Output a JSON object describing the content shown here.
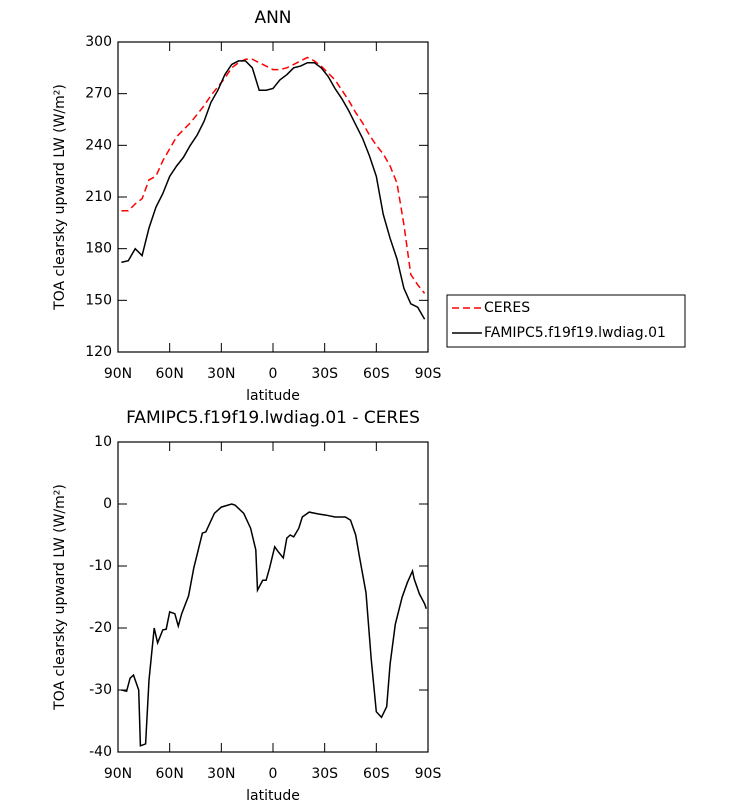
{
  "chart_data": [
    {
      "type": "line",
      "title": "ANN",
      "xlabel": "latitude",
      "ylabel": "TOA clearsky upward LW (W/m²)",
      "x": [
        88,
        84,
        80,
        76,
        72,
        68,
        64,
        60,
        56,
        52,
        48,
        44,
        40,
        36,
        32,
        28,
        24,
        20,
        16,
        12,
        8,
        4,
        0,
        -4,
        -8,
        -12,
        -16,
        -20,
        -24,
        -28,
        -32,
        -36,
        -40,
        -44,
        -48,
        -52,
        -56,
        -60,
        -64,
        -68,
        -72,
        -76,
        -80,
        -84,
        -88
      ],
      "series": [
        {
          "name": "CERES",
          "color": "#ff0000",
          "linestyle": "dashed",
          "values": [
            202,
            202,
            206,
            209,
            220,
            222,
            231,
            238,
            245,
            249,
            253,
            258,
            263,
            269,
            274,
            279,
            285,
            288,
            290,
            290,
            288,
            286,
            284,
            284,
            285,
            287,
            289,
            291,
            289,
            286,
            282,
            278,
            272,
            266,
            259,
            253,
            246,
            240,
            235,
            228,
            218,
            194,
            165,
            159,
            154
          ]
        },
        {
          "name": "FAMIPC5.f19f19.lwdiag.01",
          "color": "#000000",
          "linestyle": "solid",
          "values": [
            172,
            173,
            180,
            176,
            192,
            204,
            212,
            222,
            228,
            233,
            240,
            246,
            254,
            265,
            272,
            281,
            287,
            289,
            289,
            285,
            272,
            272,
            273,
            278,
            281,
            285,
            286,
            288,
            288,
            285,
            280,
            273,
            267,
            260,
            252,
            244,
            234,
            222,
            200,
            186,
            174,
            157,
            148,
            146,
            139
          ]
        }
      ],
      "xlim": [
        90,
        -90
      ],
      "xticks": [
        {
          "value": 90,
          "label": "90N"
        },
        {
          "value": 60,
          "label": "60N"
        },
        {
          "value": 30,
          "label": "30N"
        },
        0,
        {
          "value": -30,
          "label": "30S"
        },
        {
          "value": -60,
          "label": "60S"
        },
        {
          "value": -90,
          "label": "90S"
        }
      ],
      "ylim": [
        120,
        300
      ],
      "yticks": [
        120,
        150,
        180,
        210,
        240,
        270,
        300
      ],
      "legend": "outside-right"
    },
    {
      "type": "line",
      "title": "FAMIPC5.f19f19.lwdiag.01 - CERES",
      "xlabel": "latitude",
      "ylabel": "TOA clearsky upward LW (W/m²)",
      "x": [
        88,
        85,
        83,
        81,
        78,
        77,
        74,
        72,
        69,
        67,
        64,
        62,
        60,
        57,
        55,
        53,
        49,
        46,
        41,
        39,
        34,
        30,
        24,
        22,
        17,
        13,
        10,
        9,
        6,
        4,
        2,
        -1,
        -3,
        -6,
        -8,
        -10,
        -12,
        -15,
        -17,
        -21,
        -26,
        -31,
        -36,
        -42,
        -45,
        -48,
        -50,
        -54,
        -57,
        -60,
        -63,
        -66,
        -68,
        -71,
        -75,
        -78,
        -81,
        -82,
        -85,
        -88,
        -89
      ],
      "color": "#000000",
      "values": [
        -30,
        -30.2,
        -28.1,
        -27.6,
        -30,
        -39,
        -38.7,
        -28.4,
        -20,
        -22.4,
        -20.3,
        -20.2,
        -17.4,
        -17.7,
        -19.7,
        -17.7,
        -14.8,
        -10.3,
        -4.7,
        -4.5,
        -1.5,
        -0.5,
        0,
        -0.2,
        -1.5,
        -3.9,
        -7.4,
        -13.9,
        -12.3,
        -12.3,
        -10.3,
        -6.9,
        -7.7,
        -8.7,
        -5.5,
        -5,
        -5.3,
        -3.9,
        -2.1,
        -1.3,
        -1.6,
        -1.8,
        -2.1,
        -2.1,
        -2.6,
        -5,
        -8.2,
        -14.3,
        -25,
        -33.5,
        -34.4,
        -32.7,
        -25.8,
        -19.4,
        -15,
        -12.7,
        -10.8,
        -12.1,
        -14.5,
        -16.1,
        -16.9
      ],
      "xlim": [
        90,
        -90
      ],
      "xticks": [
        {
          "value": 90,
          "label": "90N"
        },
        {
          "value": 60,
          "label": "60N"
        },
        {
          "value": 30,
          "label": "30N"
        },
        0,
        {
          "value": -30,
          "label": "30S"
        },
        {
          "value": -60,
          "label": "60S"
        },
        {
          "value": -90,
          "label": "90S"
        }
      ],
      "ylim": [
        -40,
        10
      ],
      "yticks": [
        -40,
        -30,
        -20,
        -10,
        0,
        10
      ]
    }
  ]
}
